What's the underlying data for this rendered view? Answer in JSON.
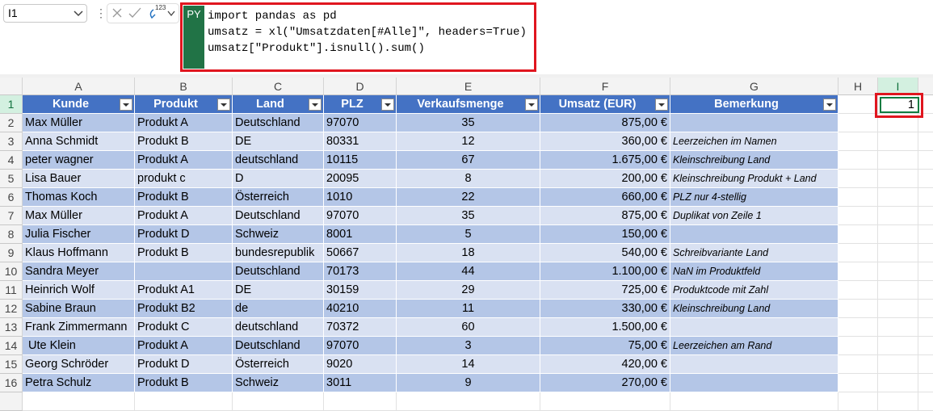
{
  "formula_bar": {
    "name_box": "I1",
    "icon_label": "123",
    "badge": "PY",
    "code_lines": [
      "import pandas as pd",
      "umsatz = xl(\"Umsatzdaten[#Alle]\", headers=True)",
      "umsatz[\"Produkt\"].isnull().sum()"
    ]
  },
  "sheet": {
    "column_letters": [
      "A",
      "B",
      "C",
      "D",
      "E",
      "F",
      "G",
      "H",
      "I"
    ],
    "row_numbers": [
      "1",
      "2",
      "3",
      "4",
      "5",
      "6",
      "7",
      "8",
      "9",
      "10",
      "11",
      "12",
      "13",
      "14",
      "15",
      "16"
    ],
    "result_cell": "1",
    "table": {
      "headers": [
        "Kunde",
        "Produkt",
        "Land",
        "PLZ",
        "Verkaufsmenge",
        "Umsatz (EUR)",
        "Bemerkung"
      ],
      "rows": [
        [
          "Max Müller",
          "Produkt A",
          "Deutschland",
          "97070",
          "35",
          "875,00 €",
          null
        ],
        [
          "Anna Schmidt",
          "Produkt B",
          "DE",
          "80331",
          "12",
          "360,00 €",
          "Leerzeichen im Namen"
        ],
        [
          "peter wagner",
          "Produkt A",
          "deutschland",
          "10115",
          "67",
          "1.675,00 €",
          "Kleinschreibung Land"
        ],
        [
          "Lisa Bauer",
          "produkt c",
          "D",
          "20095",
          "8",
          "200,00 €",
          "Kleinschreibung Produkt + Land"
        ],
        [
          "Thomas Koch",
          "Produkt B",
          "Österreich",
          "1010",
          "22",
          "660,00 €",
          "PLZ nur 4-stellig"
        ],
        [
          "Max Müller",
          "Produkt A",
          "Deutschland",
          "97070",
          "35",
          "875,00 €",
          "Duplikat von Zeile 1"
        ],
        [
          "Julia Fischer",
          "Produkt D",
          "Schweiz",
          "8001",
          "5",
          "150,00 €",
          null
        ],
        [
          "Klaus Hoffmann",
          "Produkt B",
          "bundesrepublik",
          "50667",
          "18",
          "540,00 €",
          "Schreibvariante Land"
        ],
        [
          "Sandra Meyer",
          null,
          "Deutschland",
          "70173",
          "44",
          "1.100,00 €",
          "NaN im Produktfeld"
        ],
        [
          "Heinrich Wolf",
          "Produkt A1",
          "DE",
          "30159",
          "29",
          "725,00 €",
          "Produktcode mit Zahl"
        ],
        [
          "Sabine Braun",
          "Produkt B2",
          "de",
          "40210",
          "11",
          "330,00 €",
          "Kleinschreibung Land"
        ],
        [
          "Frank Zimmermann",
          "Produkt C",
          "deutschland",
          "70372",
          "60",
          "1.500,00 €",
          null
        ],
        [
          " Ute Klein",
          "Produkt A",
          "Deutschland",
          "97070",
          "3",
          "75,00 €",
          "Leerzeichen am Rand"
        ],
        [
          "Georg Schröder",
          "Produkt D",
          "Österreich",
          "9020",
          "14",
          "420,00 €",
          null
        ],
        [
          "Petra Schulz",
          "Produkt B",
          "Schweiz",
          "3011",
          "9",
          "270,00 €",
          null
        ]
      ]
    }
  }
}
